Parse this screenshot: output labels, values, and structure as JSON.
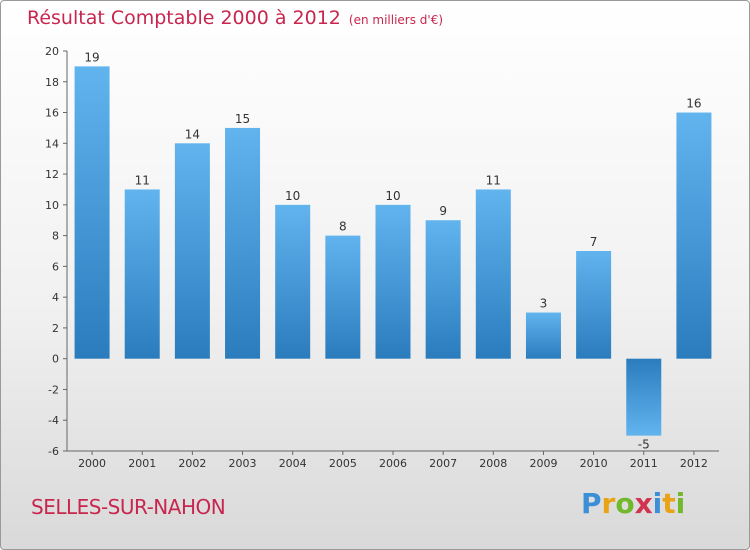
{
  "title": "Résultat Comptable 2000 à 2012",
  "subtitle": "(en milliers d'€)",
  "place": "SELLES-SUR-NAHON",
  "logo": {
    "letters": [
      "P",
      "r",
      "o",
      "x",
      "i",
      "t",
      "i"
    ]
  },
  "colors": {
    "title": "#c8264e",
    "bar_top": "#5eb0ec",
    "bar_bottom": "#2c7fc0"
  },
  "chart_data": {
    "type": "bar",
    "title": "Résultat Comptable 2000 à 2012",
    "subtitle": "(en milliers d'€)",
    "categories": [
      "2000",
      "2001",
      "2002",
      "2003",
      "2004",
      "2005",
      "2006",
      "2007",
      "2008",
      "2009",
      "2010",
      "2011",
      "2012"
    ],
    "values": [
      19,
      11,
      14,
      15,
      10,
      8,
      10,
      9,
      11,
      3,
      7,
      -5,
      16
    ],
    "ylim": [
      -6,
      20
    ],
    "yticks": [
      -6,
      -4,
      -2,
      0,
      2,
      4,
      6,
      8,
      10,
      12,
      14,
      16,
      18,
      20
    ],
    "grid": false,
    "legend": "none"
  }
}
